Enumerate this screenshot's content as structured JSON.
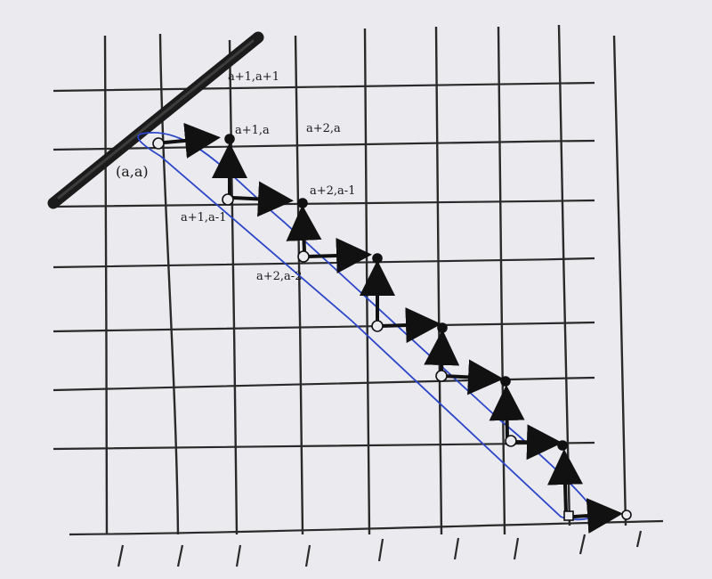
{
  "labels": {
    "origin": "(a,a)",
    "a1_a1": "a+1,a+1",
    "a1_a": "a+1,a",
    "a2_a": "a+2,a",
    "a1_am1": "a+1,a-1",
    "a2_am1": "a+2,a-1",
    "a2_am2": "a+2,a-2"
  },
  "colors": {
    "pencil": "#1a1a1a",
    "grid": "#2a2a2a",
    "band": "#2b46c8",
    "paper": "#eaeaef"
  }
}
